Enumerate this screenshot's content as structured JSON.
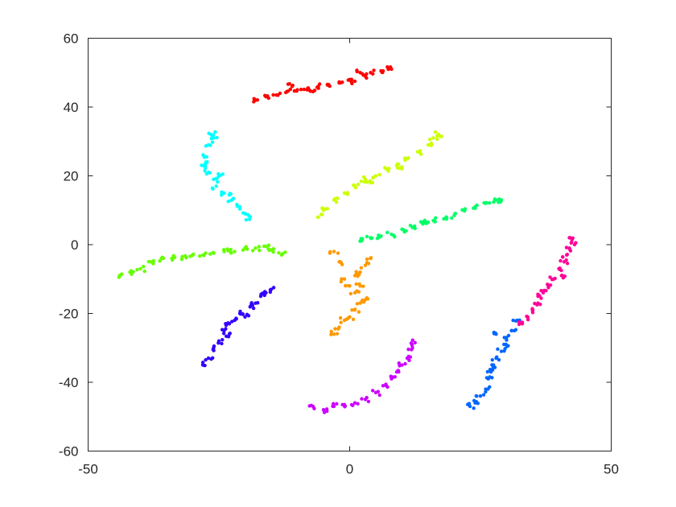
{
  "chart_data": {
    "type": "scatter",
    "title": "",
    "xlabel": "",
    "ylabel": "",
    "xlim": [
      -50,
      50
    ],
    "ylim": [
      -60,
      60
    ],
    "xticks": [
      -50,
      0,
      50
    ],
    "yticks": [
      -60,
      -40,
      -20,
      0,
      20,
      40,
      60
    ],
    "grid": false,
    "legend": "none",
    "series": [
      {
        "color": "#ff0000",
        "points": [
          [
            -18,
            42
          ],
          [
            -16,
            43
          ],
          [
            -14,
            43.5
          ],
          [
            -12,
            44.5
          ],
          [
            -10,
            45
          ],
          [
            -8,
            45.5
          ],
          [
            -6,
            46
          ],
          [
            -4,
            46.5
          ],
          [
            -2,
            47
          ],
          [
            0,
            48
          ],
          [
            1,
            47.5
          ],
          [
            3,
            49
          ],
          [
            4,
            50
          ],
          [
            6,
            50.5
          ],
          [
            8,
            51
          ],
          [
            -11,
            46
          ],
          [
            -7,
            44.5
          ],
          [
            2,
            50
          ]
        ]
      },
      {
        "color": "#00ffff",
        "points": [
          [
            -26.5,
            32
          ],
          [
            -26,
            31
          ],
          [
            -27,
            29
          ],
          [
            -28,
            26
          ],
          [
            -27.5,
            24
          ],
          [
            -28,
            23
          ],
          [
            -27,
            21
          ],
          [
            -26,
            19
          ],
          [
            -25.5,
            17
          ],
          [
            -24,
            15
          ],
          [
            -22.5,
            13
          ],
          [
            -21,
            11
          ],
          [
            -20,
            9
          ],
          [
            -19,
            8
          ],
          [
            -25,
            20
          ],
          [
            -23,
            14.5
          ]
        ]
      },
      {
        "color": "#ccff00",
        "points": [
          [
            -6,
            8
          ],
          [
            -5,
            10
          ],
          [
            -3,
            13
          ],
          [
            -1,
            15
          ],
          [
            1,
            17
          ],
          [
            3,
            19
          ],
          [
            5,
            20
          ],
          [
            7,
            22
          ],
          [
            9,
            23
          ],
          [
            11,
            25
          ],
          [
            13,
            27
          ],
          [
            15,
            29
          ],
          [
            17,
            32
          ],
          [
            16,
            31
          ],
          [
            10,
            22.5
          ],
          [
            4,
            18
          ]
        ]
      },
      {
        "color": "#00ff66",
        "points": [
          [
            2,
            1
          ],
          [
            4,
            2
          ],
          [
            6,
            2.5
          ],
          [
            8,
            3
          ],
          [
            10,
            4.5
          ],
          [
            12,
            5
          ],
          [
            14,
            6
          ],
          [
            16,
            7
          ],
          [
            18,
            7.5
          ],
          [
            20,
            8.5
          ],
          [
            22,
            10
          ],
          [
            24,
            11
          ],
          [
            26,
            12
          ],
          [
            28,
            13
          ],
          [
            29,
            13
          ],
          [
            15,
            6.5
          ]
        ]
      },
      {
        "color": "#66ff00",
        "points": [
          [
            -44,
            -9
          ],
          [
            -42,
            -8
          ],
          [
            -40,
            -7
          ],
          [
            -38,
            -5
          ],
          [
            -36,
            -4
          ],
          [
            -34,
            -4
          ],
          [
            -32,
            -3.5
          ],
          [
            -30,
            -3
          ],
          [
            -28,
            -3
          ],
          [
            -26,
            -2.5
          ],
          [
            -24,
            -2
          ],
          [
            -22,
            -2
          ],
          [
            -20,
            -1
          ],
          [
            -18,
            -1
          ],
          [
            -16,
            -0.5
          ],
          [
            -15,
            -1.5
          ],
          [
            -13,
            -3
          ]
        ]
      },
      {
        "color": "#3300ff",
        "points": [
          [
            -28,
            -35
          ],
          [
            -27,
            -33
          ],
          [
            -26,
            -30
          ],
          [
            -25,
            -28
          ],
          [
            -24,
            -25
          ],
          [
            -23,
            -23
          ],
          [
            -22,
            -22
          ],
          [
            -21,
            -20
          ],
          [
            -20,
            -21
          ],
          [
            -19,
            -18
          ],
          [
            -18,
            -17
          ],
          [
            -17,
            -15
          ],
          [
            -16,
            -14
          ],
          [
            -15,
            -13
          ],
          [
            -23,
            -26
          ]
        ]
      },
      {
        "color": "#ff9900",
        "points": [
          [
            -3,
            -26
          ],
          [
            -2,
            -24
          ],
          [
            -1,
            -22
          ],
          [
            0,
            -21
          ],
          [
            1,
            -19
          ],
          [
            2,
            -17
          ],
          [
            3,
            -16
          ],
          [
            1,
            -14
          ],
          [
            0,
            -12
          ],
          [
            -1,
            -10
          ],
          [
            1,
            -9
          ],
          [
            2,
            -8
          ],
          [
            3,
            -6
          ],
          [
            4,
            -4
          ],
          [
            -2,
            -5
          ],
          [
            -3,
            -2
          ],
          [
            2,
            -12
          ]
        ]
      },
      {
        "color": "#cc00ff",
        "points": [
          [
            -7,
            -47
          ],
          [
            -5,
            -48
          ],
          [
            -3,
            -47
          ],
          [
            -1,
            -46.5
          ],
          [
            1,
            -46
          ],
          [
            3,
            -45
          ],
          [
            5,
            -43
          ],
          [
            7,
            -41
          ],
          [
            8,
            -39
          ],
          [
            9,
            -37
          ],
          [
            10,
            -35
          ],
          [
            11,
            -33
          ],
          [
            12,
            -30
          ],
          [
            12.5,
            -28.5
          ]
        ]
      },
      {
        "color": "#0066ff",
        "points": [
          [
            23,
            -47
          ],
          [
            24,
            -46
          ],
          [
            25,
            -44
          ],
          [
            26,
            -42
          ],
          [
            26.5,
            -39
          ],
          [
            27,
            -37
          ],
          [
            27.5,
            -35
          ],
          [
            28,
            -33
          ],
          [
            29,
            -31
          ],
          [
            29.5,
            -29
          ],
          [
            30,
            -27
          ],
          [
            31,
            -25
          ],
          [
            32,
            -22
          ],
          [
            28,
            -26
          ]
        ]
      },
      {
        "color": "#ff0099",
        "points": [
          [
            33,
            -23
          ],
          [
            34,
            -21
          ],
          [
            35,
            -19
          ],
          [
            36,
            -17
          ],
          [
            37,
            -14
          ],
          [
            38,
            -12
          ],
          [
            39,
            -10
          ],
          [
            40,
            -7
          ],
          [
            41,
            -5
          ],
          [
            41.5,
            -3
          ],
          [
            42,
            -1
          ],
          [
            42,
            2
          ],
          [
            43,
            0
          ],
          [
            40.5,
            -9
          ],
          [
            36,
            -15
          ]
        ]
      }
    ]
  }
}
